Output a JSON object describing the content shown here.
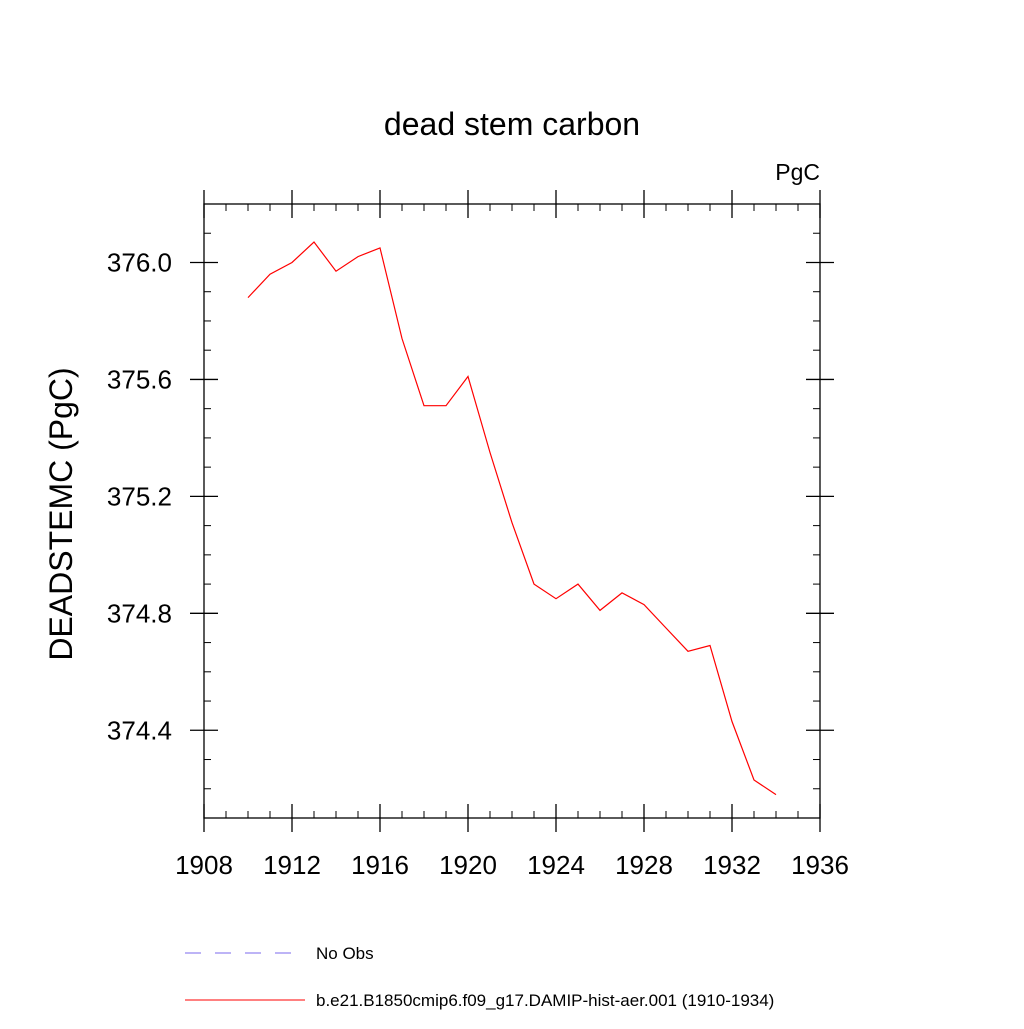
{
  "chart_data": {
    "type": "line",
    "title": "dead stem carbon",
    "units_label": "PgC",
    "ylabel": "DEADSTEMC  (PgC)",
    "xlabel": "",
    "xlim": [
      1908,
      1936
    ],
    "ylim": [
      374.1,
      376.2
    ],
    "x_major_ticks": [
      1908,
      1912,
      1916,
      1920,
      1924,
      1928,
      1932,
      1936
    ],
    "x_minor_ticks": [
      1909,
      1910,
      1911,
      1913,
      1914,
      1915,
      1917,
      1918,
      1919,
      1921,
      1922,
      1923,
      1925,
      1926,
      1927,
      1929,
      1930,
      1931,
      1933,
      1934,
      1935
    ],
    "y_major_ticks": [
      374.4,
      374.8,
      375.2,
      375.6,
      376.0
    ],
    "y_major_tick_labels": [
      "374.4",
      "374.8",
      "375.2",
      "375.6",
      "376.0"
    ],
    "y_minor_ticks": [
      374.2,
      374.3,
      374.5,
      374.6,
      374.7,
      374.9,
      375.0,
      375.1,
      375.3,
      375.4,
      375.5,
      375.7,
      375.8,
      375.9,
      376.1
    ],
    "grid": false,
    "legend_placement": "bottom",
    "series": [
      {
        "name": "b.e21.B1850cmip6.f09_g17.DAMIP-hist-aer.001 (1910-1934)",
        "color": "#ff0000",
        "dash": "solid",
        "x": [
          1910,
          1911,
          1912,
          1913,
          1914,
          1915,
          1916,
          1917,
          1918,
          1919,
          1920,
          1921,
          1922,
          1923,
          1924,
          1925,
          1926,
          1927,
          1928,
          1929,
          1930,
          1931,
          1932,
          1933,
          1934
        ],
        "y": [
          375.88,
          375.96,
          376.0,
          376.07,
          375.97,
          376.02,
          376.05,
          375.74,
          375.51,
          375.51,
          375.61,
          375.35,
          375.11,
          374.9,
          374.85,
          374.9,
          374.81,
          374.87,
          374.83,
          374.75,
          374.67,
          374.69,
          374.43,
          374.23,
          374.18
        ]
      }
    ],
    "legend": [
      {
        "label": "No Obs",
        "color": "#7b68ee",
        "dash": "dashed"
      },
      {
        "label": "b.e21.B1850cmip6.f09_g17.DAMIP-hist-aer.001 (1910-1934)",
        "color": "#ff0000",
        "dash": "solid"
      }
    ]
  }
}
